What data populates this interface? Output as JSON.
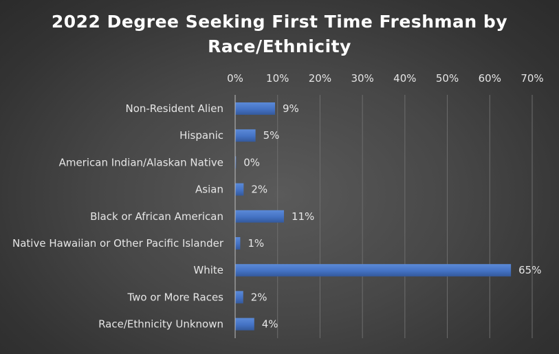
{
  "chart_data": {
    "type": "bar",
    "orientation": "horizontal",
    "title": "2022 Degree Seeking First Time Freshman by Race/Ethnicity",
    "categories": [
      "Non-Resident Alien",
      "Hispanic",
      "American Indian/Alaskan Native",
      "Asian",
      "Black or African American",
      "Native Hawaiian or Other Pacific Islander",
      "White",
      "Two or More Races",
      "Race/Ethnicity Unknown"
    ],
    "values": [
      9.4,
      4.8,
      0.2,
      2.0,
      11.5,
      1.2,
      65.0,
      1.9,
      4.5
    ],
    "data_labels": [
      "9%",
      "5%",
      "0%",
      "2%",
      "11%",
      "1%",
      "65%",
      "2%",
      "4%"
    ],
    "xlim": [
      0,
      70
    ],
    "x_ticks": [
      "0%",
      "10%",
      "20%",
      "30%",
      "40%",
      "50%",
      "60%",
      "70%"
    ],
    "x_axis_position": "top",
    "grid": true,
    "bar_color": "#4472c4",
    "xlabel": "",
    "ylabel": ""
  }
}
